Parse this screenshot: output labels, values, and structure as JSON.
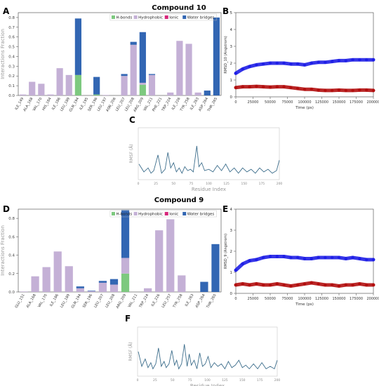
{
  "headings": {
    "top": "Compound 10",
    "bottom": "Compound 9"
  },
  "panel_letters": [
    "A",
    "B",
    "C",
    "D",
    "E",
    "F"
  ],
  "colors": {
    "hbond": "#7dc97f",
    "hydrophobic": "#c4b0d6",
    "ionic": "#d6267a",
    "water": "#3266b3",
    "protein": "#1f1fe6",
    "ligand": "#b20f0f",
    "rmsf": "#3d6e8c"
  },
  "chart_data": [
    {
      "panel": "A",
      "type": "bar",
      "stacked": true,
      "ylabel": "Interactions Fraction",
      "ylim": [
        0,
        0.85
      ],
      "yticks": [
        0.0,
        0.1,
        0.2,
        0.3,
        0.4,
        0.5,
        0.6,
        0.7,
        0.8
      ],
      "legend": [
        "H-bonds",
        "Hydrophobic",
        "Ionic",
        "Water bridges"
      ],
      "categories": [
        "ILE_149",
        "ALA_168",
        "VAL_170",
        "HIS_184",
        "ILE_186",
        "LEU_189",
        "GLN_194",
        "ILE_195",
        "SER_196",
        "LEU_197",
        "ASN_206",
        "LEU_207",
        "LEU_208",
        "ARG_209",
        "VAL_211",
        "PHE_221",
        "TRP_224",
        "ILE_226",
        "TYR_258",
        "ILE_263",
        "ASP_264",
        "THR_265"
      ],
      "series": [
        {
          "name": "H-bonds",
          "values": [
            0,
            0,
            0,
            0,
            0,
            0,
            0.21,
            0,
            0.01,
            0,
            0,
            0,
            0,
            0.11,
            0,
            0,
            0,
            0,
            0,
            0,
            0,
            0
          ]
        },
        {
          "name": "Hydrophobic",
          "values": [
            0.01,
            0.14,
            0.12,
            0.01,
            0.28,
            0.21,
            0,
            0,
            0,
            0.005,
            0,
            0.2,
            0.52,
            0.02,
            0.21,
            0,
            0.03,
            0.56,
            0.53,
            0.03,
            0,
            0
          ]
        },
        {
          "name": "Ionic",
          "values": [
            0,
            0,
            0,
            0,
            0,
            0,
            0,
            0,
            0,
            0,
            0,
            0,
            0,
            0,
            0,
            0,
            0,
            0,
            0,
            0,
            0,
            0
          ]
        },
        {
          "name": "Water bridges",
          "values": [
            0,
            0,
            0,
            0,
            0,
            0,
            0.58,
            0,
            0.18,
            0,
            0,
            0.02,
            0.03,
            0.52,
            0.01,
            0,
            0,
            0,
            0,
            0,
            0.05,
            0.8
          ]
        }
      ]
    },
    {
      "panel": "B",
      "type": "scatter",
      "ylabel": "RMSD_10 (Angstrom)",
      "xlabel": "Time (ps)",
      "xlim": [
        0,
        200000
      ],
      "ylim": [
        0,
        5
      ],
      "xticks": [
        0,
        25000,
        50000,
        75000,
        100000,
        125000,
        150000,
        175000,
        200000
      ],
      "yticks": [
        0,
        1,
        2,
        3,
        4,
        5
      ],
      "series": [
        {
          "x": [
            0,
            10000,
            20000,
            30000,
            40000,
            50000,
            60000,
            70000,
            80000,
            90000,
            100000,
            110000,
            120000,
            130000,
            140000,
            150000,
            160000,
            170000,
            180000,
            190000,
            200000
          ],
          "y": [
            1.4,
            1.65,
            1.8,
            1.9,
            1.95,
            2.0,
            2.0,
            2.0,
            1.95,
            1.95,
            1.9,
            2.0,
            2.05,
            2.05,
            2.1,
            2.15,
            2.15,
            2.2,
            2.2,
            2.2,
            2.2
          ]
        },
        {
          "x": [
            0,
            10000,
            20000,
            30000,
            40000,
            50000,
            60000,
            70000,
            80000,
            90000,
            100000,
            110000,
            120000,
            130000,
            140000,
            150000,
            160000,
            170000,
            180000,
            190000,
            200000
          ],
          "y": [
            0.55,
            0.6,
            0.6,
            0.62,
            0.6,
            0.58,
            0.6,
            0.6,
            0.55,
            0.5,
            0.45,
            0.45,
            0.4,
            0.38,
            0.38,
            0.4,
            0.38,
            0.38,
            0.4,
            0.4,
            0.38
          ]
        }
      ]
    },
    {
      "panel": "C",
      "type": "line",
      "xlabel": "Residue Index",
      "ylabel": "RMSF (Å)",
      "xlim": [
        0,
        200
      ],
      "ylim": [
        0,
        4
      ],
      "xticks": [
        0,
        25,
        50,
        75,
        100,
        125,
        150,
        175,
        200
      ],
      "x": [
        1,
        8,
        14,
        18,
        22,
        28,
        33,
        38,
        42,
        46,
        50,
        54,
        58,
        62,
        66,
        70,
        74,
        78,
        83,
        86,
        90,
        94,
        100,
        106,
        112,
        118,
        124,
        130,
        136,
        142,
        148,
        154,
        160,
        166,
        172,
        178,
        184,
        190,
        196,
        200
      ],
      "y": [
        1.2,
        0.6,
        0.9,
        0.5,
        0.7,
        1.9,
        0.5,
        0.8,
        2.1,
        0.9,
        1.3,
        0.6,
        0.9,
        0.5,
        1.0,
        0.7,
        0.8,
        0.6,
        2.6,
        1.0,
        1.3,
        0.7,
        0.8,
        0.6,
        1.1,
        0.7,
        1.2,
        0.6,
        0.9,
        0.5,
        0.9,
        0.6,
        0.8,
        0.5,
        0.9,
        0.6,
        0.8,
        0.5,
        0.7,
        1.5
      ]
    },
    {
      "panel": "D",
      "type": "bar",
      "stacked": true,
      "ylabel": "Interactions Fraction",
      "ylim": [
        0,
        0.9
      ],
      "yticks": [
        0.0,
        0.2,
        0.4,
        0.6,
        0.8
      ],
      "legend": [
        "H-bonds",
        "Hydrophobic",
        "Ionic",
        "Water bridges"
      ],
      "categories": [
        "GLU_151",
        "ALA_168",
        "VAL_170",
        "ILE_186",
        "LEU_189",
        "GLN_194",
        "SER_196",
        "LEU_207",
        "LEU_208",
        "ARG_209",
        "VAL_211",
        "TRP_224",
        "ILE_226",
        "LEU_257",
        "TYR_258",
        "ILE_263",
        "ASP_264",
        "THR_265"
      ],
      "series": [
        {
          "name": "H-bonds",
          "values": [
            0,
            0,
            0,
            0,
            0,
            0,
            0,
            0,
            0,
            0.2,
            0,
            0,
            0,
            0,
            0,
            0,
            0,
            0
          ]
        },
        {
          "name": "Hydrophobic",
          "values": [
            0.005,
            0.17,
            0.27,
            0.44,
            0.28,
            0.04,
            0.01,
            0.1,
            0.08,
            0.17,
            0,
            0.04,
            0.67,
            0.79,
            0.18,
            0,
            0,
            0
          ]
        },
        {
          "name": "Ionic",
          "values": [
            0,
            0,
            0,
            0,
            0,
            0,
            0,
            0,
            0,
            0,
            0,
            0,
            0,
            0,
            0,
            0,
            0,
            0
          ]
        },
        {
          "name": "Water bridges",
          "values": [
            0,
            0,
            0,
            0,
            0,
            0.02,
            0.005,
            0.02,
            0.06,
            0.52,
            0,
            0,
            0,
            0,
            0,
            0,
            0.11,
            0.52
          ]
        }
      ]
    },
    {
      "panel": "E",
      "type": "scatter",
      "ylabel": "RMSD_9 (Angstrom)",
      "xlabel": "Time (ps)",
      "xlim": [
        0,
        200000
      ],
      "ylim": [
        0,
        4
      ],
      "xticks": [
        0,
        25000,
        50000,
        75000,
        100000,
        125000,
        150000,
        175000,
        200000
      ],
      "yticks": [
        0,
        1,
        2,
        3,
        4
      ],
      "series": [
        {
          "x": [
            0,
            10000,
            20000,
            30000,
            40000,
            50000,
            60000,
            70000,
            80000,
            90000,
            100000,
            110000,
            120000,
            130000,
            140000,
            150000,
            160000,
            170000,
            180000,
            190000,
            200000
          ],
          "y": [
            1.1,
            1.4,
            1.55,
            1.6,
            1.7,
            1.75,
            1.75,
            1.75,
            1.7,
            1.7,
            1.65,
            1.65,
            1.7,
            1.7,
            1.7,
            1.7,
            1.65,
            1.7,
            1.65,
            1.6,
            1.6
          ]
        },
        {
          "x": [
            0,
            10000,
            20000,
            30000,
            40000,
            50000,
            60000,
            70000,
            80000,
            90000,
            100000,
            110000,
            120000,
            130000,
            140000,
            150000,
            160000,
            170000,
            180000,
            190000,
            200000
          ],
          "y": [
            0.4,
            0.45,
            0.4,
            0.45,
            0.4,
            0.4,
            0.45,
            0.4,
            0.35,
            0.4,
            0.45,
            0.5,
            0.45,
            0.4,
            0.4,
            0.35,
            0.4,
            0.4,
            0.45,
            0.4,
            0.4
          ]
        }
      ]
    },
    {
      "panel": "F",
      "type": "line",
      "xlabel": "Residue Index",
      "ylabel": "RMSF (Å)",
      "xlim": [
        0,
        200
      ],
      "ylim": [
        0,
        4
      ],
      "xticks": [
        0,
        25,
        50,
        75,
        100,
        125,
        150,
        175,
        200
      ],
      "x": [
        1,
        6,
        11,
        15,
        19,
        22,
        26,
        30,
        34,
        38,
        41,
        45,
        49,
        53,
        56,
        59,
        63,
        67,
        71,
        74,
        77,
        81,
        85,
        89,
        93,
        97,
        101,
        105,
        110,
        115,
        120,
        125,
        130,
        135,
        140,
        145,
        150,
        155,
        160,
        166,
        172,
        178,
        184,
        190,
        196,
        200
      ],
      "y": [
        2.0,
        0.8,
        1.4,
        0.7,
        1.1,
        0.6,
        1.0,
        2.3,
        0.8,
        1.2,
        0.7,
        1.0,
        2.1,
        0.9,
        1.3,
        0.6,
        1.0,
        2.6,
        0.8,
        1.8,
        0.9,
        1.3,
        0.6,
        1.9,
        0.8,
        1.0,
        1.6,
        0.7,
        1.1,
        0.8,
        1.0,
        0.6,
        1.2,
        0.7,
        0.9,
        1.3,
        0.7,
        0.9,
        0.6,
        1.0,
        0.6,
        1.1,
        0.6,
        0.8,
        0.6,
        1.3
      ]
    }
  ]
}
